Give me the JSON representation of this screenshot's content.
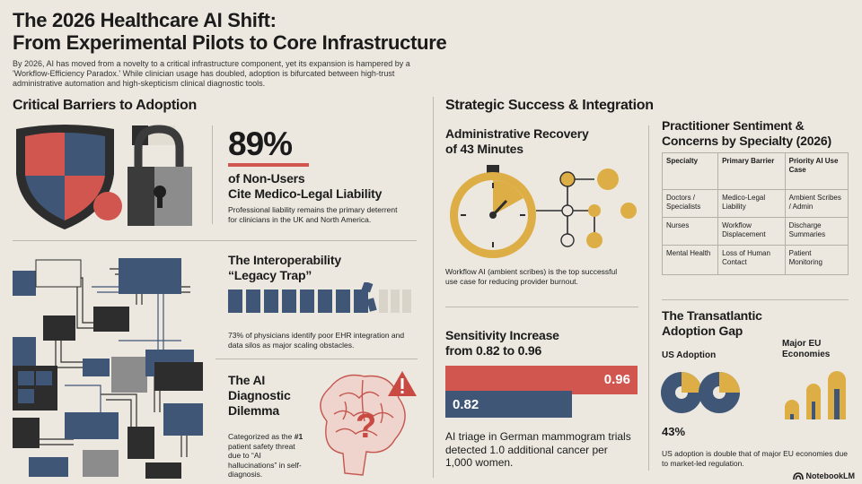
{
  "header": {
    "title_line1": "The 2026 Healthcare AI Shift:",
    "title_line2": "From Experimental Pilots to Core Infrastructure",
    "intro": "By 2026, AI has moved from a novelty to a critical infrastructure component, yet its expansion is hampered by a 'Workflow-Efficiency Paradox.' While clinician usage has doubled, adoption is bifurcated between high-trust administrative automation and high-skepticism clinical diagnostic tools."
  },
  "barriers": {
    "heading": "Critical Barriers to Adoption",
    "stat": "89%",
    "stat_title_line1": "of Non-Users",
    "stat_title_line2": "Cite Medico-Legal Liability",
    "stat_desc": "Professional liability remains the primary deterrent for clinicians in the UK and North America.",
    "interop_title_line1": "The Interoperability",
    "interop_title_line2": "“Legacy Trap”",
    "interop_desc": "73% of physicians identify poor EHR integration and data silos as major scaling obstacles.",
    "diag_title_line1": "The AI",
    "diag_title_line2": "Diagnostic",
    "diag_title_line3": "Dilemma",
    "diag_desc_pre": "Categorized as the ",
    "diag_desc_bold": "#1",
    "diag_desc_post": " patient safety threat due to “AI hallucinations” in self-diagnosis."
  },
  "success": {
    "heading": "Strategic Success & Integration",
    "admin_title_line1": "Administrative Recovery",
    "admin_title_line2": "of 43 Minutes",
    "admin_desc": "Workflow AI (ambient scribes) is the top successful use case for reducing provider burnout.",
    "sens_title_line1": "Sensitivity Increase",
    "sens_title_line2": "from 0.82 to 0.96",
    "sens_before_label": "0.82",
    "sens_after_label": "0.96",
    "sens_before": 0.82,
    "sens_after": 0.96,
    "sens_desc": "AI triage in German mammogram trials detected 1.0 additional cancer per 1,000 women."
  },
  "sentiment": {
    "title_line1": "Practitioner Sentiment &",
    "title_line2": "Concerns by Specialty (2026)",
    "columns": [
      "Specialty",
      "Primary Barrier",
      "Priority AI Use Case"
    ],
    "rows": [
      [
        "Doctors / Specialists",
        "Medico-Legal Liability",
        "Ambient Scribes / Admin"
      ],
      [
        "Nurses",
        "Workflow Displacement",
        "Discharge Summaries"
      ],
      [
        "Mental Health",
        "Loss of Human Contact",
        "Patient Monitoring"
      ]
    ]
  },
  "transatlantic": {
    "title_line1": "The Transatlantic",
    "title_line2": "Adoption Gap",
    "us_label": "US Adoption",
    "eu_label_line1": "Major EU",
    "eu_label_line2": "Economies",
    "us_value": "43%",
    "desc": "US adoption is double that of major EU economies due to market-led regulation."
  },
  "brand": {
    "name": "NotebookLM"
  },
  "colors": {
    "red": "#d25650",
    "navy": "#3f5677",
    "gold": "#ddae45",
    "dark": "#3b3b3b",
    "gray": "#8c8c8c",
    "bg": "#ece8e0"
  }
}
